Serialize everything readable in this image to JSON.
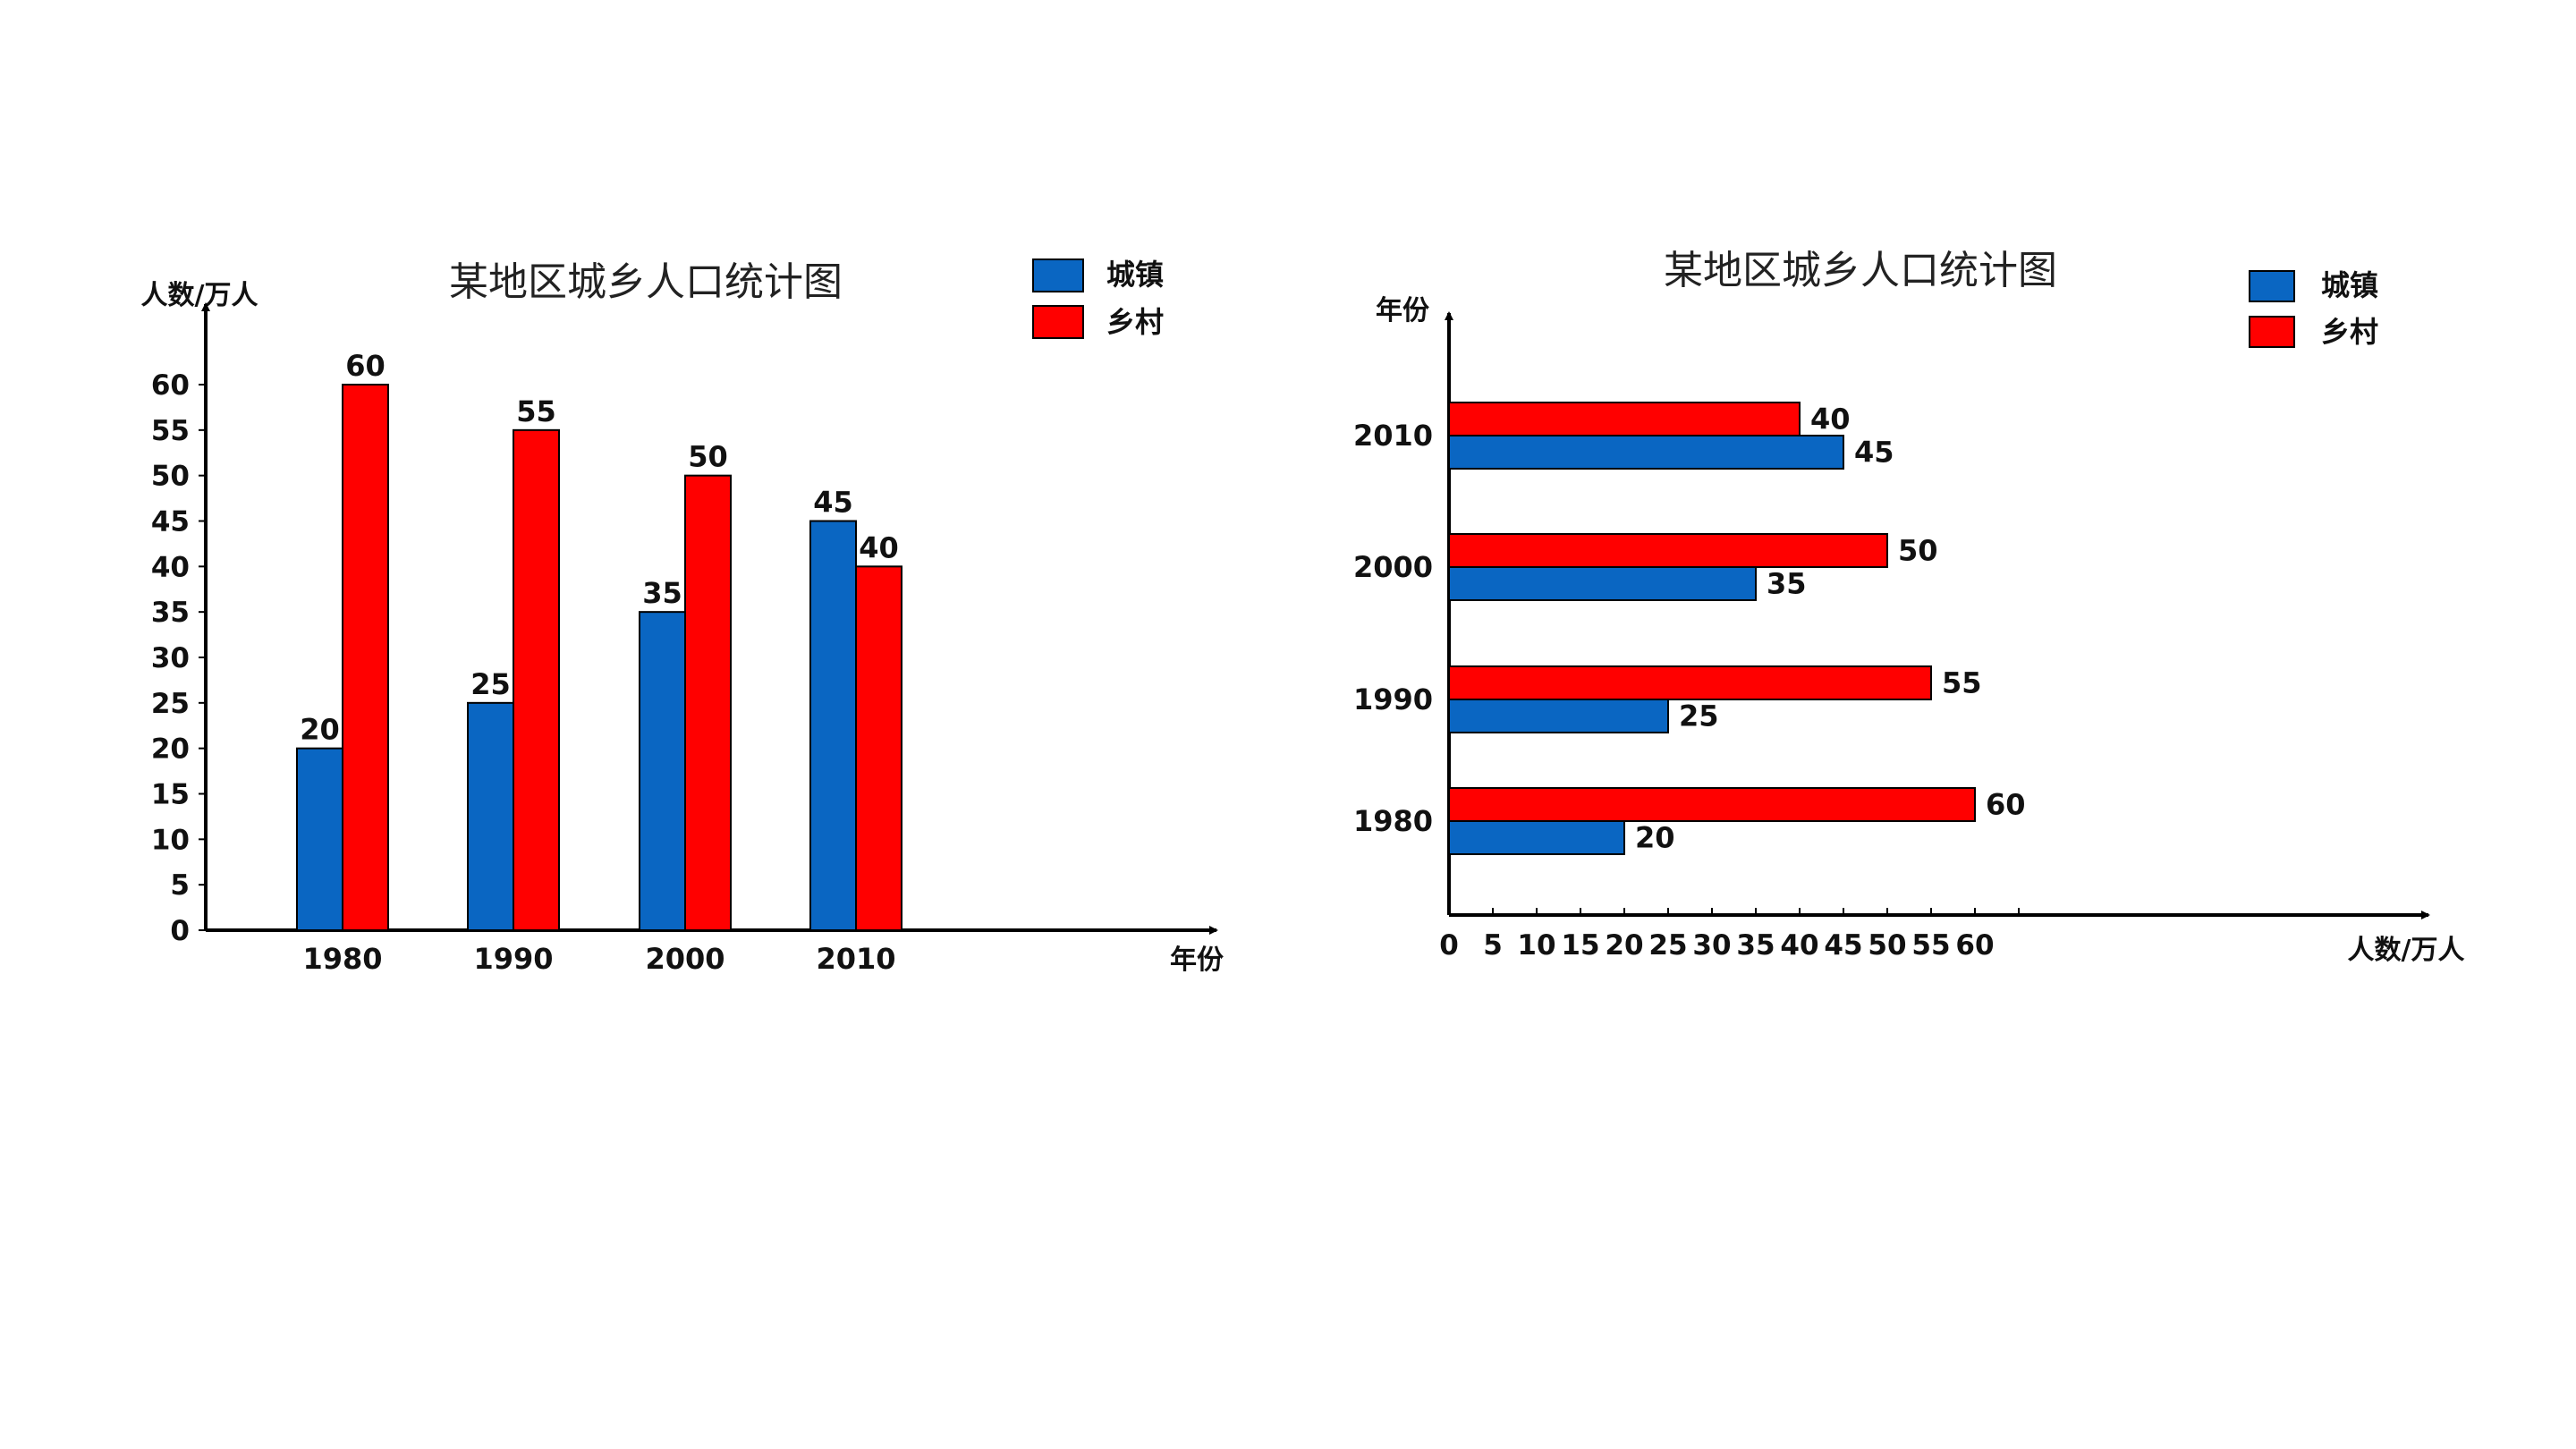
{
  "chart_data": [
    {
      "type": "bar",
      "orientation": "vertical",
      "title": "某地区城乡人口统计图",
      "xlabel": "年份",
      "ylabel": "人数/万人",
      "categories": [
        "1980",
        "1990",
        "2000",
        "2010"
      ],
      "series": [
        {
          "name": "城镇",
          "values": [
            20,
            25,
            35,
            45
          ],
          "color": "#0a66c2"
        },
        {
          "name": "乡村",
          "values": [
            60,
            55,
            50,
            40
          ],
          "color": "#ff0000"
        }
      ],
      "ylim": [
        0,
        60
      ],
      "yticks": [
        "0",
        "5",
        "10",
        "15",
        "20",
        "25",
        "30",
        "35",
        "40",
        "45",
        "50",
        "55",
        "60"
      ],
      "grid": false,
      "legend_position": "top-right"
    },
    {
      "type": "bar",
      "orientation": "horizontal",
      "title": "某地区城乡人口统计图",
      "xlabel": "人数/万人",
      "ylabel": "年份",
      "categories": [
        "1980",
        "1990",
        "2000",
        "2010"
      ],
      "series": [
        {
          "name": "城镇",
          "values": [
            20,
            25,
            35,
            45
          ],
          "color": "#0a66c2"
        },
        {
          "name": "乡村",
          "values": [
            60,
            55,
            50,
            40
          ],
          "color": "#ff0000"
        }
      ],
      "xlim": [
        0,
        60
      ],
      "xticks": [
        "0",
        "5",
        "10",
        "15",
        "20",
        "25",
        "30",
        "35",
        "40",
        "45",
        "50",
        "55",
        "60"
      ],
      "grid": false,
      "legend_position": "top-right"
    }
  ]
}
